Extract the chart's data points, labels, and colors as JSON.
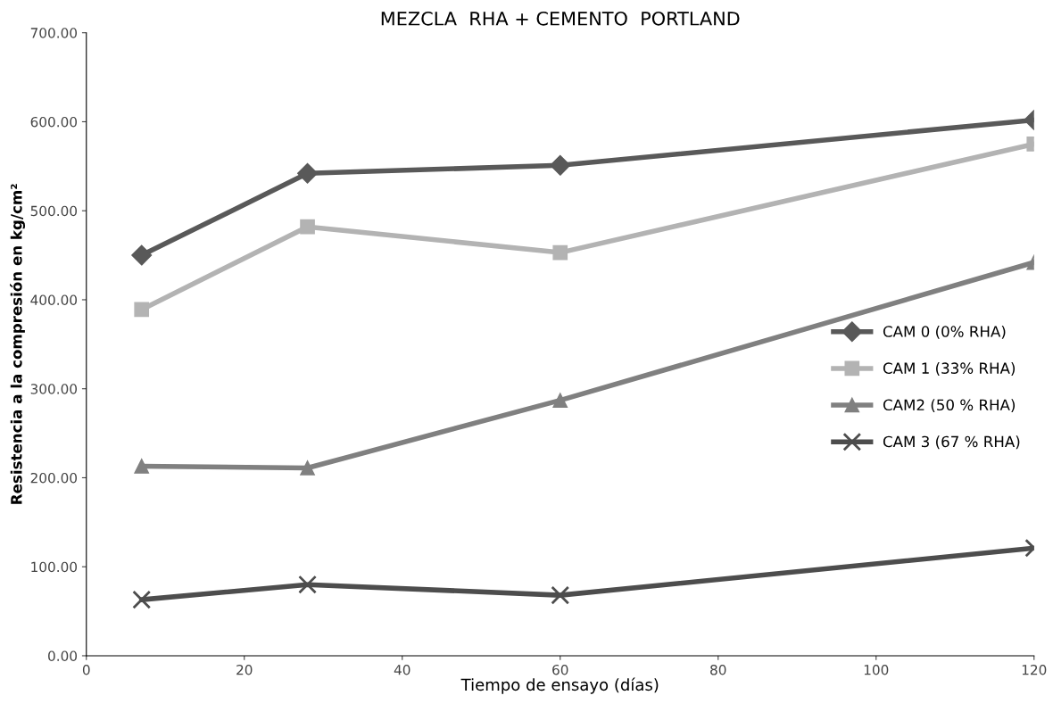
{
  "chart_data": {
    "type": "line",
    "title": "MEZCLA  RHA + CEMENTO  PORTLAND",
    "xlabel": "Tiempo de ensayo (días)",
    "ylabel": "Resistencia a la compresión en kg/cm²",
    "x": [
      7,
      28,
      60,
      120
    ],
    "series": [
      {
        "name": "CAM 0 (0% RHA)",
        "color": "#595959",
        "marker": "diamond",
        "values": [
          450,
          542,
          551,
          602
        ]
      },
      {
        "name": "CAM 1 (33% RHA)",
        "color": "#b3b3b3",
        "marker": "square",
        "values": [
          389,
          482,
          453,
          575
        ]
      },
      {
        "name": "CAM2 (50 % RHA)",
        "color": "#808080",
        "marker": "triangle",
        "values": [
          213,
          211,
          287,
          442
        ]
      },
      {
        "name": "CAM 3 (67 % RHA)",
        "color": "#4d4d4d",
        "marker": "cross",
        "values": [
          63,
          80,
          68,
          121
        ]
      }
    ],
    "xlim": [
      0,
      120
    ],
    "xticks": [
      0,
      20,
      40,
      60,
      80,
      100,
      120
    ],
    "ylim": [
      0,
      700
    ],
    "yticks": [
      {
        "value": 0,
        "label": "0.00"
      },
      {
        "value": 100,
        "label": "100.00"
      },
      {
        "value": 200,
        "label": "200.00"
      },
      {
        "value": 300,
        "label": "300.00"
      },
      {
        "value": 400,
        "label": "400.00"
      },
      {
        "value": 500,
        "label": "500.00"
      },
      {
        "value": 600,
        "label": "600.00"
      },
      {
        "value": 700,
        "label": "700.00"
      }
    ],
    "grid": false,
    "legend": "right",
    "line_style": "solid"
  }
}
